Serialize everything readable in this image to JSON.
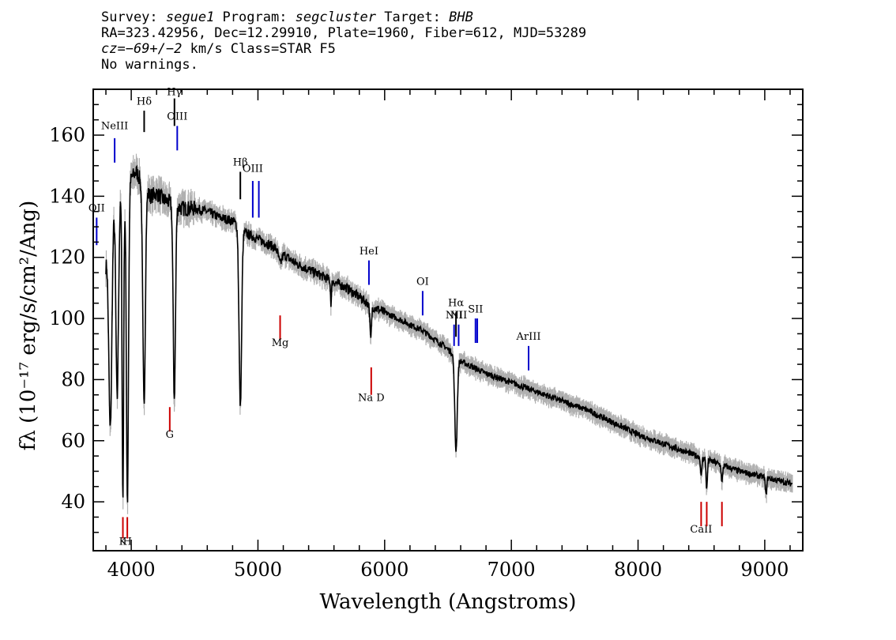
{
  "header": {
    "line1": {
      "survey_label": "Survey: ",
      "survey": "segue1",
      "program_label": " Program: ",
      "program": "segcluster",
      "target_label": " Target: ",
      "target": "BHB"
    },
    "line2": "RA=323.42956, Dec=12.29910, Plate=1960, Fiber=612, MJD=53289",
    "line3": {
      "cz_label": "cz",
      "cz_value": "=−69+/−2",
      "cz_rest": " km/s Class=STAR F5"
    },
    "line4": "No warnings."
  },
  "chart_data": {
    "type": "line",
    "title": "",
    "xlabel": "Wavelength (Angstroms)",
    "ylabel": "fλ (10⁻¹⁷ erg/s/cm²/Ang)",
    "xlim": [
      3700,
      9300
    ],
    "ylim": [
      24,
      175
    ],
    "x_ticks": [
      4000,
      5000,
      6000,
      7000,
      8000,
      9000
    ],
    "y_ticks": [
      40,
      60,
      80,
      100,
      120,
      140,
      160
    ],
    "grid": false,
    "legend": "none",
    "colors": {
      "spectrum": "#000000",
      "error": "#b0b0b0",
      "emission": "#0000cc",
      "absorption": "#cc0000"
    },
    "continuum": [
      [
        3800,
        118
      ],
      [
        3860,
        137
      ],
      [
        3900,
        139
      ],
      [
        3960,
        140
      ],
      [
        4000,
        146
      ],
      [
        4040,
        148
      ],
      [
        4100,
        143
      ],
      [
        4150,
        140
      ],
      [
        4200,
        141
      ],
      [
        4250,
        139
      ],
      [
        4300,
        138
      ],
      [
        4400,
        136
      ],
      [
        4500,
        136
      ],
      [
        4600,
        135
      ],
      [
        4700,
        133
      ],
      [
        4800,
        132
      ],
      [
        4900,
        128
      ],
      [
        5000,
        126
      ],
      [
        5100,
        124
      ],
      [
        5200,
        121
      ],
      [
        5300,
        118
      ],
      [
        5400,
        116
      ],
      [
        5500,
        114
      ],
      [
        5600,
        112
      ],
      [
        5700,
        110
      ],
      [
        5800,
        107
      ],
      [
        5900,
        104
      ],
      [
        6000,
        102
      ],
      [
        6100,
        100
      ],
      [
        6200,
        98
      ],
      [
        6300,
        96
      ],
      [
        6400,
        93
      ],
      [
        6500,
        90
      ],
      [
        6600,
        86
      ],
      [
        6700,
        84
      ],
      [
        6800,
        82
      ],
      [
        7000,
        79
      ],
      [
        7200,
        76
      ],
      [
        7400,
        73
      ],
      [
        7600,
        70
      ],
      [
        7800,
        66
      ],
      [
        8000,
        62
      ],
      [
        8200,
        59
      ],
      [
        8400,
        56
      ],
      [
        8600,
        53
      ],
      [
        8800,
        50
      ],
      [
        9000,
        48
      ],
      [
        9100,
        47
      ],
      [
        9200,
        46
      ]
    ],
    "absorption_features": [
      [
        3835,
        64,
        12
      ],
      [
        3889,
        74,
        10
      ],
      [
        3934,
        40,
        6
      ],
      [
        3970,
        40,
        8
      ],
      [
        4101,
        72,
        10
      ],
      [
        4340,
        74,
        9
      ],
      [
        4861,
        71,
        10
      ],
      [
        5175,
        118,
        12
      ],
      [
        5577,
        105,
        4
      ],
      [
        5890,
        93,
        6
      ],
      [
        6563,
        57,
        10
      ],
      [
        8498,
        48,
        5
      ],
      [
        8542,
        44,
        5
      ],
      [
        8662,
        46,
        5
      ],
      [
        9010,
        42,
        5
      ]
    ],
    "emission_lines": [
      {
        "label": "OII",
        "x": 3727,
        "y_top": 133,
        "y_bottom": 124,
        "label_y": 135
      },
      {
        "label": "NeIII",
        "x": 3869,
        "y_top": 159,
        "y_bottom": 151,
        "label_y": 162
      },
      {
        "label": "OIII",
        "x": 4363,
        "y_top": 163,
        "y_bottom": 155,
        "label_y": 165
      },
      {
        "label": "OIII",
        "x": 4959,
        "y_top": 145,
        "y_bottom": 133,
        "label_y": 148
      },
      {
        "label": "",
        "x": 5007,
        "y_top": 145,
        "y_bottom": 133,
        "label_y": 148
      },
      {
        "label": "HeI",
        "x": 5876,
        "y_top": 119,
        "y_bottom": 111,
        "label_y": 121
      },
      {
        "label": "OI",
        "x": 6300,
        "y_top": 109,
        "y_bottom": 101,
        "label_y": 111
      },
      {
        "label": "NII",
        "x": 6548,
        "y_top": 98,
        "y_bottom": 91,
        "label_y": 100
      },
      {
        "label": "NII",
        "x": 6584,
        "y_top": 98,
        "y_bottom": 91,
        "label_y": 100
      },
      {
        "label": "SII",
        "x": 6717,
        "y_top": 100,
        "y_bottom": 92,
        "label_y": 102
      },
      {
        "label": "",
        "x": 6731,
        "y_top": 100,
        "y_bottom": 92,
        "label_y": 102
      },
      {
        "label": "ArIII",
        "x": 7136,
        "y_top": 91,
        "y_bottom": 83,
        "label_y": 93
      }
    ],
    "balmer_lines": [
      {
        "label": "Hδ",
        "x": 4102,
        "y_top": 168,
        "y_bottom": 161,
        "label_y": 170
      },
      {
        "label": "Hγ",
        "x": 4341,
        "y_top": 172,
        "y_bottom": 163,
        "label_y": 173
      },
      {
        "label": "Hβ",
        "x": 4861,
        "y_top": 148,
        "y_bottom": 139,
        "label_y": 150
      },
      {
        "label": "Hα",
        "x": 6563,
        "y_top": 102,
        "y_bottom": 94,
        "label_y": 104
      }
    ],
    "absorption_lines": [
      {
        "label": "K",
        "x": 3934,
        "y_top": 35,
        "y_bottom": 28,
        "label_y": 26
      },
      {
        "label": "H",
        "x": 3969,
        "y_top": 35,
        "y_bottom": 28,
        "label_y": 26
      },
      {
        "label": "G",
        "x": 4304,
        "y_top": 71,
        "y_bottom": 63,
        "label_y": 61
      },
      {
        "label": "Mg",
        "x": 5175,
        "y_top": 101,
        "y_bottom": 93,
        "label_y": 91
      },
      {
        "label": "Na D",
        "x": 5894,
        "y_top": 84,
        "y_bottom": 75,
        "label_y": 73
      },
      {
        "label": "CaII",
        "x": 8498,
        "y_top": 40,
        "y_bottom": 32,
        "label_y": 30
      },
      {
        "label": "",
        "x": 8542,
        "y_top": 40,
        "y_bottom": 32,
        "label_y": 30
      },
      {
        "label": "",
        "x": 8662,
        "y_top": 40,
        "y_bottom": 32,
        "label_y": 30
      }
    ]
  }
}
